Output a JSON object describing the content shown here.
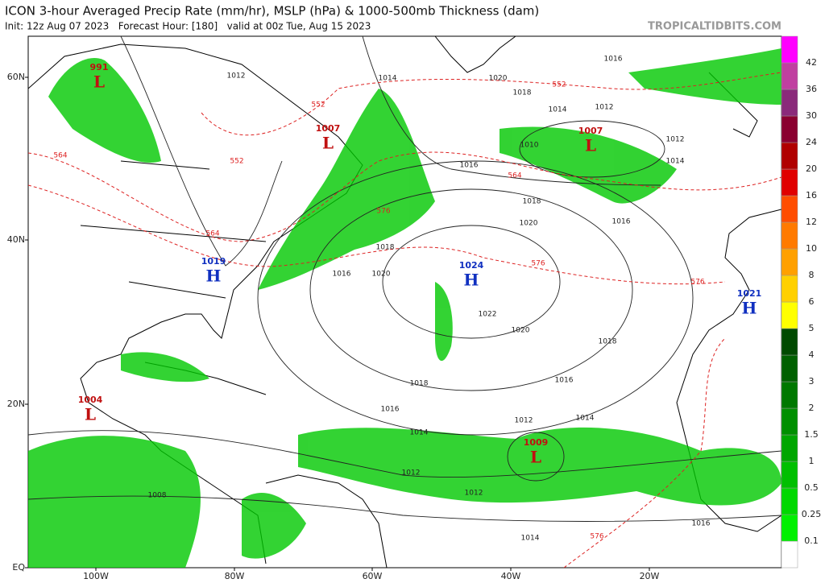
{
  "header": {
    "title": "ICON 3-hour Averaged Precip Rate (mm/hr), MSLP (hPa) & 1000-500mb Thickness (dam)",
    "subtitle": "Init: 12z Aug 07 2023   Forecast Hour: [180]   valid at 00z Tue, Aug 15 2023",
    "watermark": "TROPICALTIDBITS.COM"
  },
  "map": {
    "lat_labels": [
      "60N",
      "40N",
      "20N",
      "EQ"
    ],
    "lon_labels": [
      "100W",
      "80W",
      "60W",
      "40W",
      "20W"
    ],
    "pressure_centers": [
      {
        "symbol": "L",
        "value": 991
      },
      {
        "symbol": "L",
        "value": 1007
      },
      {
        "symbol": "L",
        "value": 1007
      },
      {
        "symbol": "H",
        "value": 1019
      },
      {
        "symbol": "H",
        "value": 1024
      },
      {
        "symbol": "L",
        "value": 1009
      },
      {
        "symbol": "L",
        "value": 1004
      },
      {
        "symbol": "H",
        "value": 1021
      }
    ],
    "isobar_labels": [
      1012,
      1014,
      1016,
      1020,
      1018,
      1014,
      1012,
      1010,
      1012,
      1014,
      1016,
      1018,
      1020,
      1016,
      1018,
      1016,
      1020,
      1022,
      1020,
      1018,
      1016,
      1018,
      1016,
      1014,
      1014,
      1012,
      1012,
      1012,
      1014,
      1008,
      1016
    ],
    "thickness_labels": [
      552,
      564,
      576,
      576,
      564,
      552,
      576,
      564,
      576,
      552
    ]
  },
  "colorbar": {
    "levels": [
      0.1,
      0.25,
      0.5,
      1,
      1.5,
      2,
      3,
      4,
      5,
      6,
      8,
      10,
      12,
      16,
      20,
      24,
      30,
      36,
      42
    ],
    "colors": [
      "#ffffff",
      "#00f000",
      "#00d800",
      "#00bf00",
      "#00a600",
      "#008f00",
      "#007800",
      "#006000",
      "#004a00",
      "#ffff00",
      "#ffd000",
      "#ffa000",
      "#ff7a00",
      "#ff4d00",
      "#e00000",
      "#b00000",
      "#8a0030",
      "#8a2a7a",
      "#c040a0",
      "#ff00ff"
    ]
  }
}
